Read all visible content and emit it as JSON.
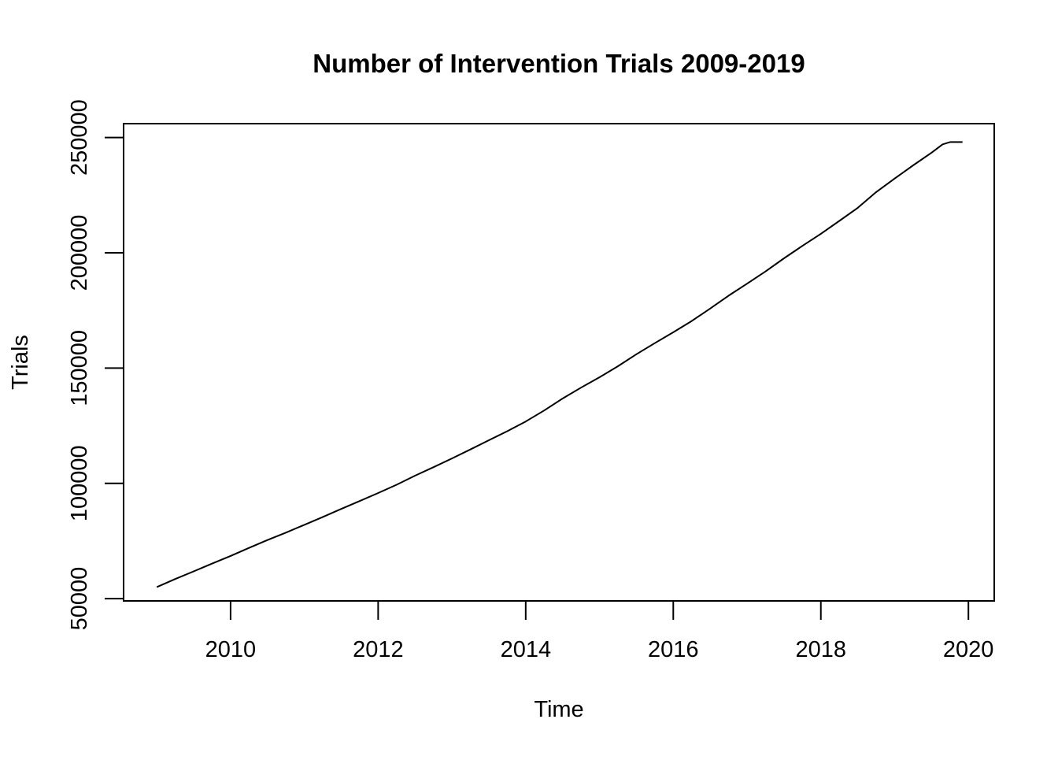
{
  "chart_data": {
    "type": "line",
    "title": "Number of Intervention Trials 2009-2019",
    "xlabel": "Time",
    "ylabel": "Trials",
    "xlim": [
      2008.55,
      2020.35
    ],
    "ylim": [
      49000,
      256000
    ],
    "xticks": [
      2010,
      2012,
      2014,
      2016,
      2018,
      2020
    ],
    "yticks": [
      50000,
      100000,
      150000,
      200000,
      250000
    ],
    "grid": false,
    "legend": "none",
    "line_color": "#000000",
    "series": [
      {
        "x": [
          2009.0,
          2009.25,
          2009.5,
          2009.75,
          2010.0,
          2010.25,
          2010.5,
          2010.75,
          2011.0,
          2011.25,
          2011.5,
          2011.75,
          2012.0,
          2012.25,
          2012.5,
          2012.75,
          2013.0,
          2013.25,
          2013.5,
          2013.75,
          2014.0,
          2014.25,
          2014.5,
          2014.75,
          2015.0,
          2015.25,
          2015.5,
          2015.75,
          2016.0,
          2016.25,
          2016.5,
          2016.75,
          2017.0,
          2017.25,
          2017.5,
          2017.75,
          2018.0,
          2018.25,
          2018.5,
          2018.75,
          2019.0,
          2019.25,
          2019.5,
          2019.65,
          2019.75,
          2019.92
        ],
        "values": [
          55000,
          58500,
          61800,
          65200,
          68500,
          72000,
          75400,
          78600,
          82000,
          85400,
          88900,
          92300,
          95800,
          99400,
          103300,
          107000,
          110800,
          114700,
          118700,
          122600,
          126800,
          131600,
          136800,
          141500,
          146000,
          150800,
          156000,
          160800,
          165500,
          170400,
          175800,
          181400,
          186600,
          191900,
          197600,
          203000,
          208200,
          213800,
          219500,
          226300,
          232200,
          237900,
          243400,
          247000,
          248000,
          248000
        ]
      }
    ]
  }
}
